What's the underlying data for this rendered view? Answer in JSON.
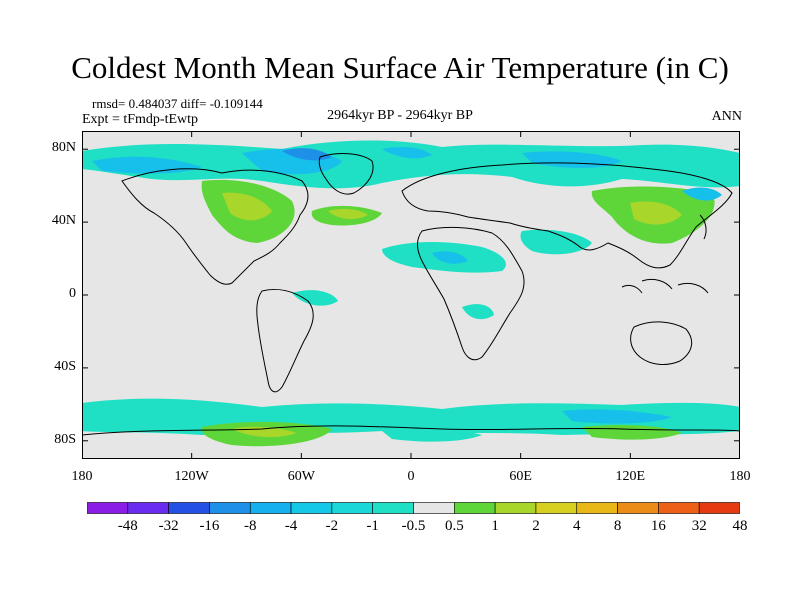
{
  "title": "Coldest Month Mean Surface Air Temperature (in C)",
  "stats": "rmsd= 0.484037 diff= -0.109144",
  "experiment": "Expt = tFmdp-tEwtp",
  "period": "2964kyr BP - 2964kyr BP",
  "season": "ANN",
  "map": {
    "projection": "cylindrical-equidistant",
    "lon_range": [
      -180,
      180
    ],
    "lat_range": [
      -90,
      90
    ],
    "background": "#e6e6e6",
    "x_ticks": [
      {
        "lon": -180,
        "label": "180"
      },
      {
        "lon": -120,
        "label": "120W"
      },
      {
        "lon": -60,
        "label": "60W"
      },
      {
        "lon": 0,
        "label": "0"
      },
      {
        "lon": 60,
        "label": "60E"
      },
      {
        "lon": 120,
        "label": "120E"
      },
      {
        "lon": 180,
        "label": "180"
      }
    ],
    "y_ticks": [
      {
        "lat": 80,
        "label": "80N"
      },
      {
        "lat": 40,
        "label": "40N"
      },
      {
        "lat": 0,
        "label": "0"
      },
      {
        "lat": -40,
        "label": "40S"
      },
      {
        "lat": -80,
        "label": "80S"
      }
    ],
    "anomaly_colors": {
      "teal": "#1fe0c4",
      "cyan": "#17c0ea",
      "blue": "#1e90e8",
      "green": "#5ed63a",
      "yellowgreen": "#a8d62a",
      "yellow": "#d8d020"
    }
  },
  "colorbar": {
    "colors": [
      "#8a1ee6",
      "#6a2cf0",
      "#2450e6",
      "#1e90e8",
      "#17b0ee",
      "#15c8e8",
      "#1ad8d8",
      "#1fe0c4",
      "#e6e6e6",
      "#5ed63a",
      "#a8d62a",
      "#d8d020",
      "#e8b818",
      "#ec8c18",
      "#ec6018",
      "#e63a12"
    ],
    "labels": [
      "-48",
      "-32",
      "-16",
      "-8",
      "-4",
      "-2",
      "-1",
      "-0.5",
      "0.5",
      "1",
      "2",
      "4",
      "8",
      "16",
      "32",
      "48"
    ]
  }
}
